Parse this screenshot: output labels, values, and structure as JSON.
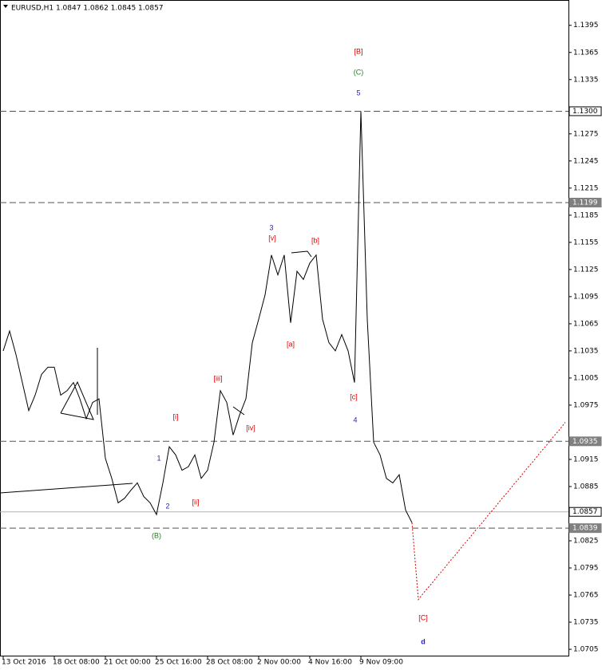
{
  "chart_data": {
    "type": "line",
    "title": "EURUSD,H1  1.0847 1.0862 1.0845 1.0857",
    "categories": [
      "13 Oct 2016",
      null,
      null,
      null,
      null,
      null,
      null,
      null,
      "18 Oct 08:00",
      null,
      null,
      null,
      null,
      null,
      null,
      null,
      "21 Oct 00:00",
      null,
      null,
      null,
      null,
      null,
      null,
      null,
      "25 Oct 16:00",
      null,
      null,
      null,
      null,
      null,
      null,
      null,
      "28 Oct 08:00",
      null,
      null,
      null,
      null,
      null,
      null,
      null,
      "2 Nov 00:00",
      null,
      null,
      null,
      null,
      null,
      null,
      null,
      "4 Nov 16:00",
      null,
      null,
      null,
      null,
      null,
      null,
      null,
      "9 Nov 09:00",
      null,
      null,
      null,
      null,
      null,
      null,
      null,
      null,
      null,
      null,
      null,
      null,
      null,
      null,
      null,
      null,
      null,
      null,
      null,
      null,
      null,
      null,
      null,
      null,
      null,
      null,
      null,
      null,
      null,
      null,
      null,
      null
    ],
    "series": [
      {
        "name": "EURUSD",
        "color": "#000000",
        "style": "solid",
        "values": [
          1.1035,
          1.1057,
          1.1031,
          1.1,
          1.0969,
          1.0986,
          1.1009,
          1.1017,
          1.1017,
          1.0986,
          1.0991,
          1.1,
          1.0982,
          1.096,
          1.0978,
          1.0982,
          1.0916,
          1.0894,
          1.0867,
          1.0872,
          1.0881,
          1.0889,
          1.0874,
          1.0867,
          1.0854,
          1.0889,
          1.0929,
          1.092,
          1.0903,
          1.0907,
          1.092,
          1.0894,
          1.0903,
          1.0934,
          1.0991,
          1.0978,
          1.0942,
          1.0964,
          1.0982,
          1.1044,
          1.107,
          1.1097,
          1.1141,
          1.1119,
          1.1141,
          1.1066,
          1.1123,
          1.1114,
          1.1132,
          1.1141,
          1.107,
          1.1044,
          1.1035,
          1.1053,
          1.1035,
          1.1,
          1.13,
          1.107,
          1.0934,
          1.092,
          1.0894,
          1.0889,
          1.0898,
          1.0859,
          1.0845,
          null,
          null,
          null,
          null,
          null,
          null,
          null,
          null,
          null,
          null,
          null,
          null,
          null,
          null,
          null,
          null,
          null,
          null,
          null,
          null,
          null,
          null,
          null,
          null
        ]
      },
      {
        "name": "Projection",
        "color": "#e00000",
        "style": "dotted",
        "values": [
          null,
          null,
          null,
          null,
          null,
          null,
          null,
          null,
          null,
          null,
          null,
          null,
          null,
          null,
          null,
          null,
          null,
          null,
          null,
          null,
          null,
          null,
          null,
          null,
          null,
          null,
          null,
          null,
          null,
          null,
          null,
          null,
          null,
          null,
          null,
          null,
          null,
          null,
          null,
          null,
          null,
          null,
          null,
          null,
          null,
          null,
          null,
          null,
          null,
          null,
          null,
          null,
          null,
          null,
          null,
          null,
          null,
          null,
          null,
          null,
          null,
          null,
          null,
          null,
          1.0845,
          1.076,
          1.0769,
          1.0777,
          1.0786,
          1.0794,
          1.0803,
          1.0811,
          1.082,
          1.0828,
          1.0837,
          1.0845,
          1.0854,
          1.0862,
          1.0871,
          1.0879,
          1.0888,
          1.0896,
          1.0905,
          1.0913,
          1.0922,
          1.093,
          1.0939,
          1.0947,
          1.0956
        ]
      }
    ],
    "ylim": [
      1.0698,
      1.1423
    ],
    "yticks": [
      1.1395,
      1.1365,
      1.1335,
      1.1275,
      1.1245,
      1.1215,
      1.1185,
      1.1155,
      1.1125,
      1.1095,
      1.1065,
      1.1035,
      1.1005,
      1.0975,
      1.0915,
      1.0885,
      1.0825,
      1.0795,
      1.0765,
      1.0735,
      1.0705
    ],
    "levels": [
      {
        "value": 1.13,
        "label": "1.1300",
        "line": "dashed"
      },
      {
        "value": 1.1199,
        "label": "1.1199",
        "line": "dashed"
      },
      {
        "value": 1.0935,
        "label": "1.0935",
        "line": "dashed"
      },
      {
        "value": 1.0857,
        "label": "1.0857",
        "line": "solid"
      },
      {
        "value": 1.0839,
        "label": "1.0839",
        "line": "dashed"
      }
    ],
    "annotations": [
      {
        "text": "[B]",
        "color": "#e00000"
      },
      {
        "text": "(C)",
        "color": "#208020"
      },
      {
        "text": "5",
        "color": "#2020d0"
      },
      {
        "text": "3",
        "color": "#2020d0"
      },
      {
        "text": "[v]",
        "color": "#e00000"
      },
      {
        "text": "[b]",
        "color": "#e00000"
      },
      {
        "text": "[a]",
        "color": "#e00000"
      },
      {
        "text": "[c]",
        "color": "#e00000"
      },
      {
        "text": "4",
        "color": "#2020d0"
      },
      {
        "text": "[iii]",
        "color": "#e00000"
      },
      {
        "text": "[i]",
        "color": "#e00000"
      },
      {
        "text": "[iv]",
        "color": "#e00000"
      },
      {
        "text": "1",
        "color": "#2020d0"
      },
      {
        "text": "2",
        "color": "#2020d0"
      },
      {
        "text": "[ii]",
        "color": "#e00000"
      },
      {
        "text": "(B)",
        "color": "#208020"
      },
      {
        "text": "[C]",
        "color": "#e00000"
      },
      {
        "text": "d",
        "color": "#2020d0"
      }
    ]
  }
}
